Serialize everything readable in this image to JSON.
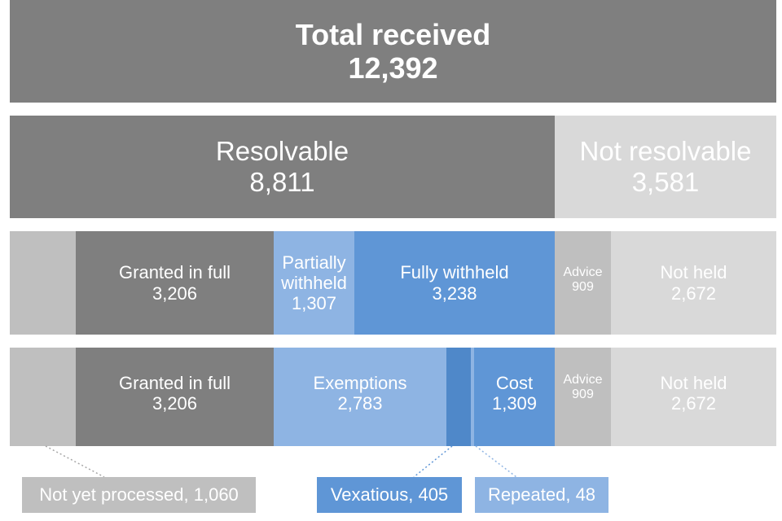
{
  "row1": {
    "total": {
      "label": "Total received",
      "value": "12,392"
    }
  },
  "row2": {
    "resolvable": {
      "label": "Resolvable",
      "value": "8,811"
    },
    "not_resolvable": {
      "label": "Not resolvable",
      "value": "3,581"
    }
  },
  "row3": {
    "granted": {
      "label": "Granted in full",
      "value": "3,206"
    },
    "partially": {
      "label1": "Partially",
      "label2": "withheld",
      "value": "1,307"
    },
    "fully": {
      "label": "Fully withheld",
      "value": "3,238"
    },
    "advice": {
      "label": "Advice",
      "value": "909"
    },
    "not_held": {
      "label": "Not held",
      "value": "2,672"
    }
  },
  "row4": {
    "granted": {
      "label": "Granted in full",
      "value": "3,206"
    },
    "exemptions": {
      "label": "Exemptions",
      "value": "2,783"
    },
    "cost": {
      "label": "Cost",
      "value": "1,309"
    },
    "advice": {
      "label": "Advice",
      "value": "909"
    },
    "not_held": {
      "label": "Not held",
      "value": "2,672"
    }
  },
  "callouts": {
    "not_yet_processed": "Not yet processed, 1,060",
    "vexatious": "Vexatious, 405",
    "repeated": "Repeated, 48"
  },
  "colors": {
    "dark_grey": "#7f7f7f",
    "light_grey": "#d9d9d9",
    "mid_grey": "#bfbfbf",
    "light_blue": "#8eb4e3",
    "blue": "#5f96d6",
    "dark_blue": "#4f88c9"
  }
}
